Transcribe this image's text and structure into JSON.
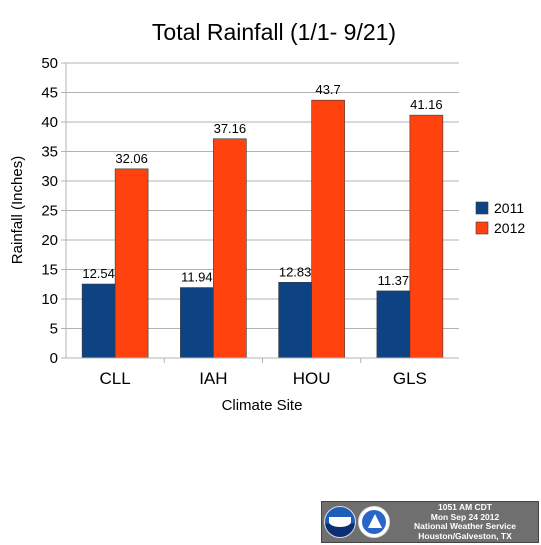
{
  "chart_data": {
    "type": "bar",
    "title": "Total Rainfall (1/1- 9/21)",
    "xlabel": "Climate Site",
    "ylabel": "Rainfall (Inches)",
    "categories": [
      "CLL",
      "IAH",
      "HOU",
      "GLS"
    ],
    "series": [
      {
        "name": "2011",
        "values": [
          12.54,
          11.94,
          12.83,
          11.37
        ],
        "color": "#0e4383"
      },
      {
        "name": "2012",
        "values": [
          32.06,
          37.16,
          43.7,
          41.16
        ],
        "color": "#ff420e"
      }
    ],
    "data_labels": [
      [
        "12.54",
        "11.94",
        "12.83",
        "11.37"
      ],
      [
        "32.06",
        "37.16",
        "43.7",
        "41.16"
      ]
    ],
    "ylim": [
      0,
      50
    ],
    "yticks": [
      0,
      5,
      10,
      15,
      20,
      25,
      30,
      35,
      40,
      45,
      50
    ],
    "grid": true,
    "legend": "right"
  },
  "badge": {
    "time": "1051 AM CDT",
    "date": "Mon Sep 24 2012",
    "office": "National Weather Service",
    "location": "Houston/Galveston, TX",
    "logos": [
      "noaa-logo",
      "nws-logo"
    ]
  }
}
